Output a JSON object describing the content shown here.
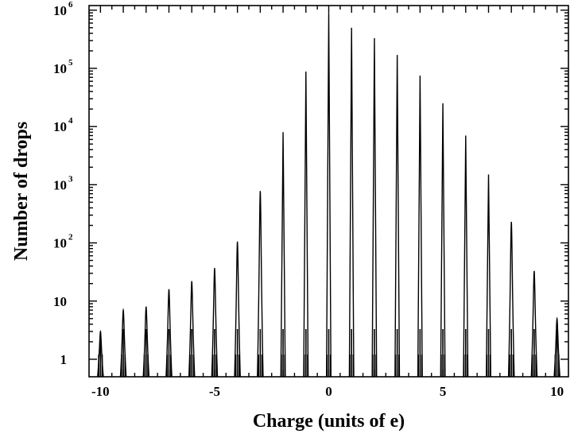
{
  "chart_data": {
    "type": "histogram",
    "xlabel": "Charge (units of e)",
    "ylabel": "Number of drops",
    "xlim": [
      -10.5,
      10.5
    ],
    "ylim": [
      0.5,
      1200000
    ],
    "y_scale": "log",
    "x_ticks": [
      -10,
      -5,
      0,
      5,
      10
    ],
    "x_tick_labels": [
      "-10",
      "-5",
      "0",
      "5",
      "10"
    ],
    "y_ticks": [
      {
        "value": 1,
        "base": "1",
        "exp": ""
      },
      {
        "value": 10,
        "base": "10",
        "exp": ""
      },
      {
        "value": 100,
        "base": "10",
        "exp": "2"
      },
      {
        "value": 1000,
        "base": "10",
        "exp": "3"
      },
      {
        "value": 10000,
        "base": "10",
        "exp": "4"
      },
      {
        "value": 100000,
        "base": "10",
        "exp": "5"
      },
      {
        "value": 1000000,
        "base": "10",
        "exp": "6"
      }
    ],
    "grid": false,
    "line_color": "#000000",
    "peaks": [
      {
        "charge": -10,
        "count": 3
      },
      {
        "charge": -9,
        "count": 7
      },
      {
        "charge": -8,
        "count": 8
      },
      {
        "charge": -7,
        "count": 16
      },
      {
        "charge": -6,
        "count": 22
      },
      {
        "charge": -5,
        "count": 37
      },
      {
        "charge": -4,
        "count": 105
      },
      {
        "charge": -3,
        "count": 780
      },
      {
        "charge": -2,
        "count": 8000
      },
      {
        "charge": -1,
        "count": 88000
      },
      {
        "charge": 0,
        "count": 900000
      },
      {
        "charge": 1,
        "count": 500000
      },
      {
        "charge": 2,
        "count": 330000
      },
      {
        "charge": 3,
        "count": 170000
      },
      {
        "charge": 4,
        "count": 75000
      },
      {
        "charge": 5,
        "count": 25000
      },
      {
        "charge": 6,
        "count": 7000
      },
      {
        "charge": 7,
        "count": 1500
      },
      {
        "charge": 8,
        "count": 230
      },
      {
        "charge": 9,
        "count": 33
      },
      {
        "charge": 10,
        "count": 5
      }
    ]
  }
}
